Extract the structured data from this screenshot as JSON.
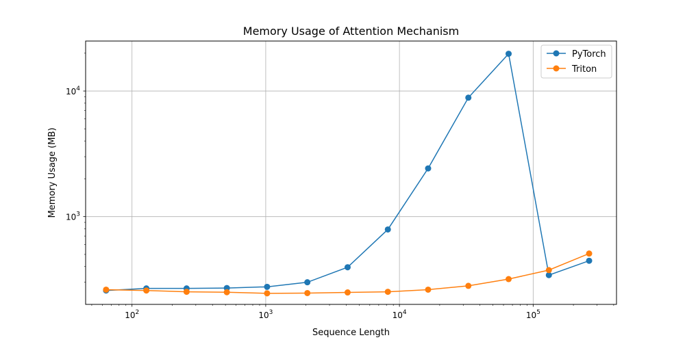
{
  "chart_data": {
    "type": "line",
    "title": "Memory Usage of Attention Mechanism",
    "xlabel": "Sequence Length",
    "ylabel": "Memory Usage (MB)",
    "xscale": "log",
    "yscale": "log",
    "xlim": [
      45,
      420000
    ],
    "ylim": [
      200,
      25000
    ],
    "grid": true,
    "legend_position": "top-right",
    "x": [
      64,
      128,
      256,
      512,
      1024,
      2048,
      4096,
      8192,
      16384,
      32768,
      65536,
      131072,
      262144
    ],
    "series": [
      {
        "name": "PyTorch",
        "color": "#1f77b4",
        "values": [
          258,
          268,
          268,
          270,
          276,
          300,
          395,
          790,
          2420,
          8850,
          19800,
          342,
          445
        ]
      },
      {
        "name": "Triton",
        "color": "#ff7f0e",
        "values": [
          262,
          258,
          252,
          250,
          245,
          246,
          249,
          252,
          262,
          281,
          318,
          375,
          508
        ]
      }
    ],
    "x_ticks": [
      {
        "value": 100,
        "base": "10",
        "exp": "2"
      },
      {
        "value": 1000,
        "base": "10",
        "exp": "3"
      },
      {
        "value": 10000,
        "base": "10",
        "exp": "4"
      },
      {
        "value": 100000,
        "base": "10",
        "exp": "5"
      }
    ],
    "y_ticks": [
      {
        "value": 1000,
        "base": "10",
        "exp": "3"
      },
      {
        "value": 10000,
        "base": "10",
        "exp": "4"
      }
    ]
  }
}
